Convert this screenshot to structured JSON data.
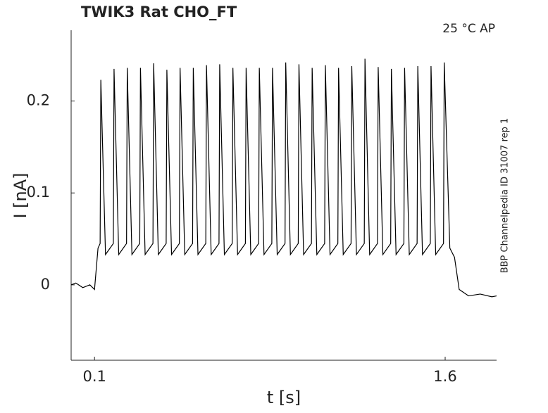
{
  "chart_data": {
    "type": "line",
    "title": "TWIK3  Rat  CHO_FT",
    "annotation": "25 °C  AP",
    "side_note": "BBP Channelpedia ID 31007 rep 1",
    "x_label": "t [s]",
    "y_label": "I [nA]",
    "xlim": [
      0,
      1.82
    ],
    "ylim": [
      -0.082,
      0.277
    ],
    "xticks": [
      0.1,
      1.6
    ],
    "yticks": [
      0,
      0.1,
      0.2
    ],
    "series": [
      {
        "name": "I",
        "color": "#000000",
        "x": [
          0,
          0.02,
          0.05,
          0.08,
          0.1,
          0.115,
          0.124,
          0.127,
          0.147,
          0.1805,
          0.1835,
          0.2035,
          0.237,
          0.24,
          0.26,
          0.2935,
          0.2965,
          0.3165,
          0.35,
          0.353,
          0.373,
          0.4065,
          0.4095,
          0.4295,
          0.463,
          0.466,
          0.486,
          0.5195,
          0.5225,
          0.5425,
          0.576,
          0.579,
          0.599,
          0.6325,
          0.6355,
          0.6555,
          0.689,
          0.692,
          0.712,
          0.7455,
          0.7485,
          0.7685,
          0.802,
          0.805,
          0.825,
          0.8585,
          0.8615,
          0.8815,
          0.915,
          0.918,
          0.938,
          0.9715,
          0.9745,
          0.9945,
          1.028,
          1.031,
          1.051,
          1.0845,
          1.0875,
          1.1075,
          1.141,
          1.144,
          1.164,
          1.1975,
          1.2005,
          1.2205,
          1.254,
          1.257,
          1.277,
          1.3105,
          1.3135,
          1.3335,
          1.367,
          1.37,
          1.39,
          1.4235,
          1.4265,
          1.4465,
          1.48,
          1.483,
          1.503,
          1.5365,
          1.5395,
          1.5595,
          1.593,
          1.596,
          1.62,
          1.64,
          1.66,
          1.7,
          1.75,
          1.8,
          1.82
        ],
        "values": [
          0,
          0.002,
          -0.003,
          0,
          -0.005,
          0.04,
          0.045,
          0.223,
          0.033,
          0.045,
          0.235,
          0.033,
          0.045,
          0.236,
          0.033,
          0.045,
          0.236,
          0.033,
          0.045,
          0.241,
          0.033,
          0.045,
          0.234,
          0.033,
          0.045,
          0.236,
          0.033,
          0.045,
          0.236,
          0.033,
          0.045,
          0.239,
          0.033,
          0.045,
          0.24,
          0.033,
          0.045,
          0.236,
          0.033,
          0.045,
          0.236,
          0.033,
          0.045,
          0.236,
          0.033,
          0.045,
          0.236,
          0.033,
          0.045,
          0.242,
          0.033,
          0.045,
          0.24,
          0.033,
          0.045,
          0.236,
          0.033,
          0.045,
          0.239,
          0.033,
          0.045,
          0.236,
          0.033,
          0.045,
          0.238,
          0.033,
          0.045,
          0.246,
          0.033,
          0.045,
          0.237,
          0.033,
          0.045,
          0.235,
          0.033,
          0.045,
          0.236,
          0.033,
          0.045,
          0.238,
          0.033,
          0.045,
          0.238,
          0.033,
          0.045,
          0.242,
          0.04,
          0.03,
          -0.005,
          -0.012,
          -0.01,
          -0.013,
          -0.012
        ]
      }
    ]
  }
}
